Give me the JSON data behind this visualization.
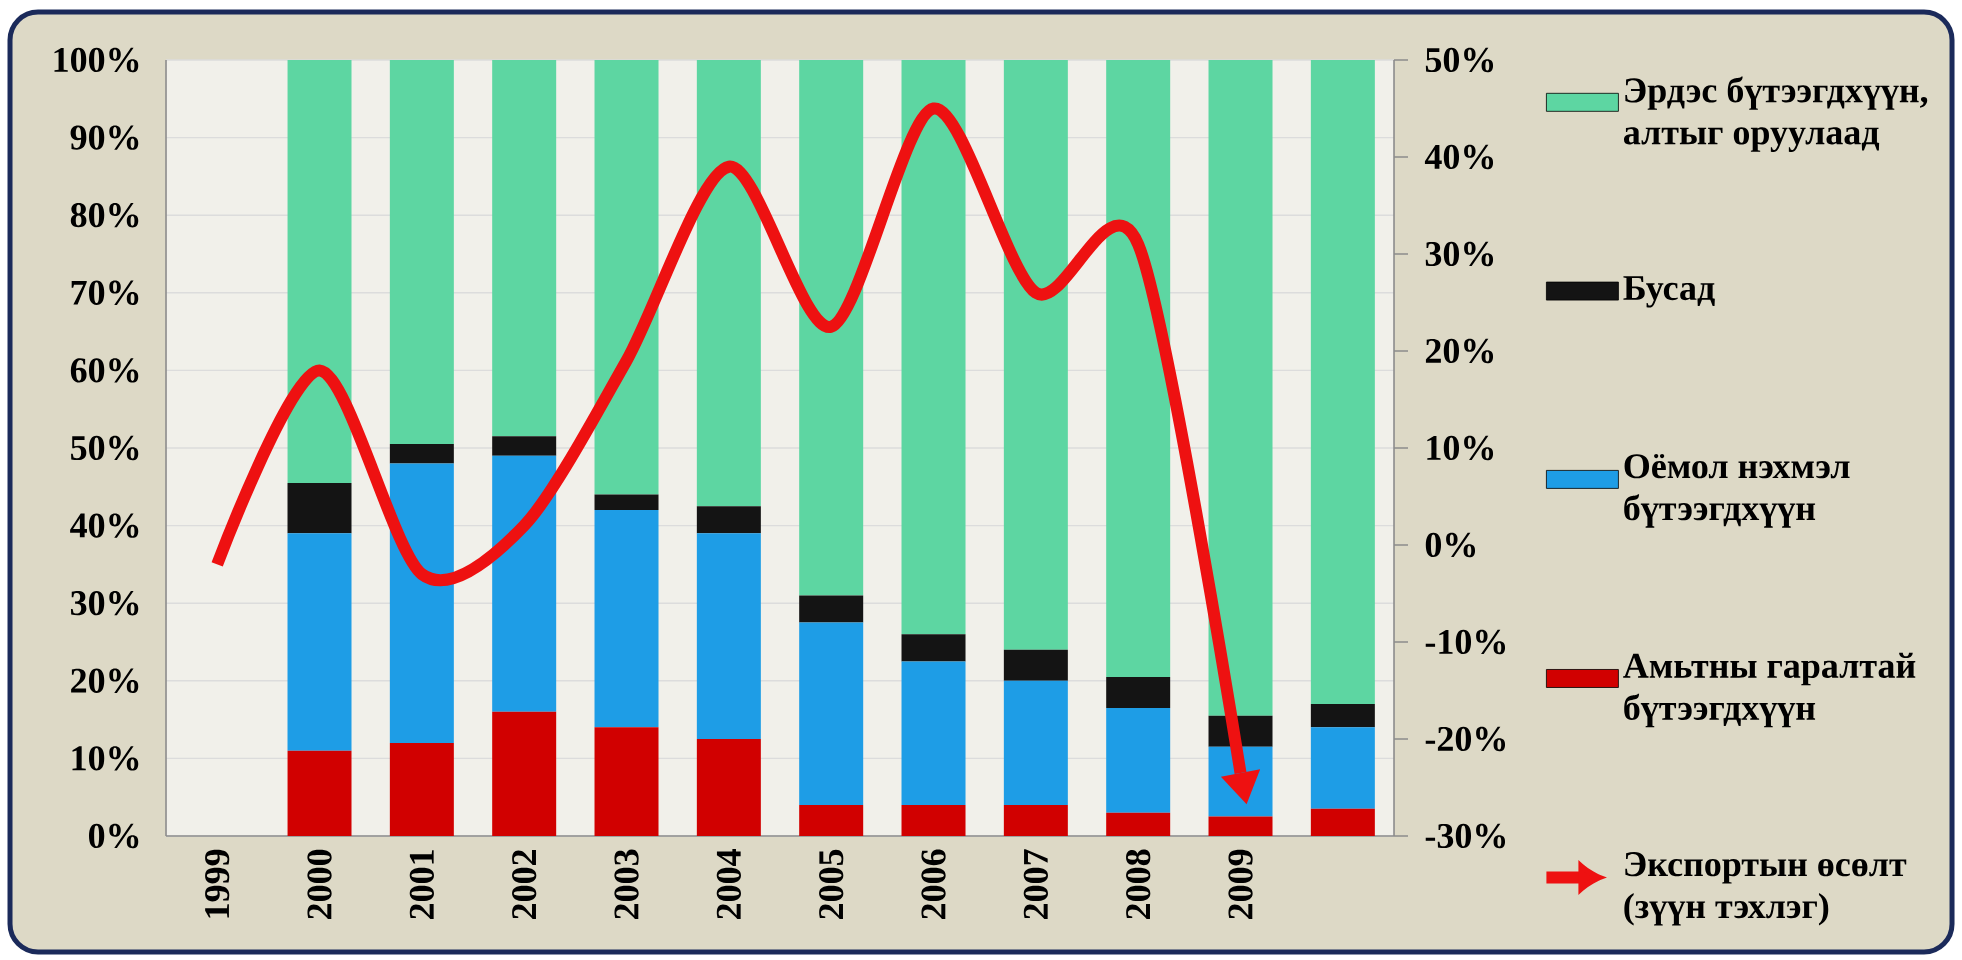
{
  "chart_data": {
    "type": "bar",
    "stacked": true,
    "categories": [
      "1999",
      "2000",
      "2001",
      "2002",
      "2003",
      "2004",
      "2005",
      "2006",
      "2007",
      "2008",
      "2009",
      null
    ],
    "series": [
      {
        "name": "Амьтны гаралтай бүтээгдхүүн",
        "color": "#d10000",
        "values": [
          null,
          11,
          12,
          16,
          14,
          12.5,
          4,
          4,
          4,
          3,
          2.5,
          3.5
        ]
      },
      {
        "name": "Оёмол нэхмэл бүтээгдхүүн",
        "color": "#1e9de6",
        "values": [
          null,
          28,
          36,
          33,
          28,
          26.5,
          23.5,
          18.5,
          16,
          13.5,
          9,
          10.5
        ]
      },
      {
        "name": "Бусад",
        "color": "#141414",
        "values": [
          null,
          6.5,
          2.5,
          2.5,
          2,
          3.5,
          3.5,
          3.5,
          4,
          4,
          4,
          3
        ]
      },
      {
        "name": "Эрдэс бүтээгдхүүн, алтыг оруулаад",
        "color": "#5dd6a2",
        "values": [
          null,
          54.5,
          49.5,
          48.5,
          56,
          57.5,
          69,
          74,
          76,
          79.5,
          84.5,
          83
        ]
      },
      {
        "name": "Экспортын өсөлт (зүүн тэхлэг)",
        "type": "line",
        "axis": "y2",
        "color": "#ee1111",
        "values": [
          -2,
          18,
          -3,
          2,
          19,
          39,
          22.5,
          45,
          26,
          31,
          -23.5,
          null
        ]
      }
    ],
    "ylim": [
      0,
      100
    ],
    "yticks": [
      {
        "value": 0,
        "label": "0%"
      },
      {
        "value": 10,
        "label": "10%"
      },
      {
        "value": 20,
        "label": "20%"
      },
      {
        "value": 30,
        "label": "30%"
      },
      {
        "value": 40,
        "label": "40%"
      },
      {
        "value": 50,
        "label": "50%"
      },
      {
        "value": 60,
        "label": "60%"
      },
      {
        "value": 70,
        "label": "70%"
      },
      {
        "value": 80,
        "label": "80%"
      },
      {
        "value": 90,
        "label": "90%"
      },
      {
        "value": 100,
        "label": "100%"
      }
    ],
    "y2lim": [
      -30,
      50
    ],
    "y2ticks": [
      {
        "value": -30,
        "label": "-30%"
      },
      {
        "value": -20,
        "label": "-20%"
      },
      {
        "value": -10,
        "label": "-10%"
      },
      {
        "value": 0,
        "label": "0%"
      },
      {
        "value": 10,
        "label": "10%"
      },
      {
        "value": 20,
        "label": "20%"
      },
      {
        "value": 30,
        "label": "30%"
      },
      {
        "value": 40,
        "label": "40%"
      },
      {
        "value": 50,
        "label": "50%"
      }
    ],
    "grid": "y",
    "legend": "right"
  }
}
